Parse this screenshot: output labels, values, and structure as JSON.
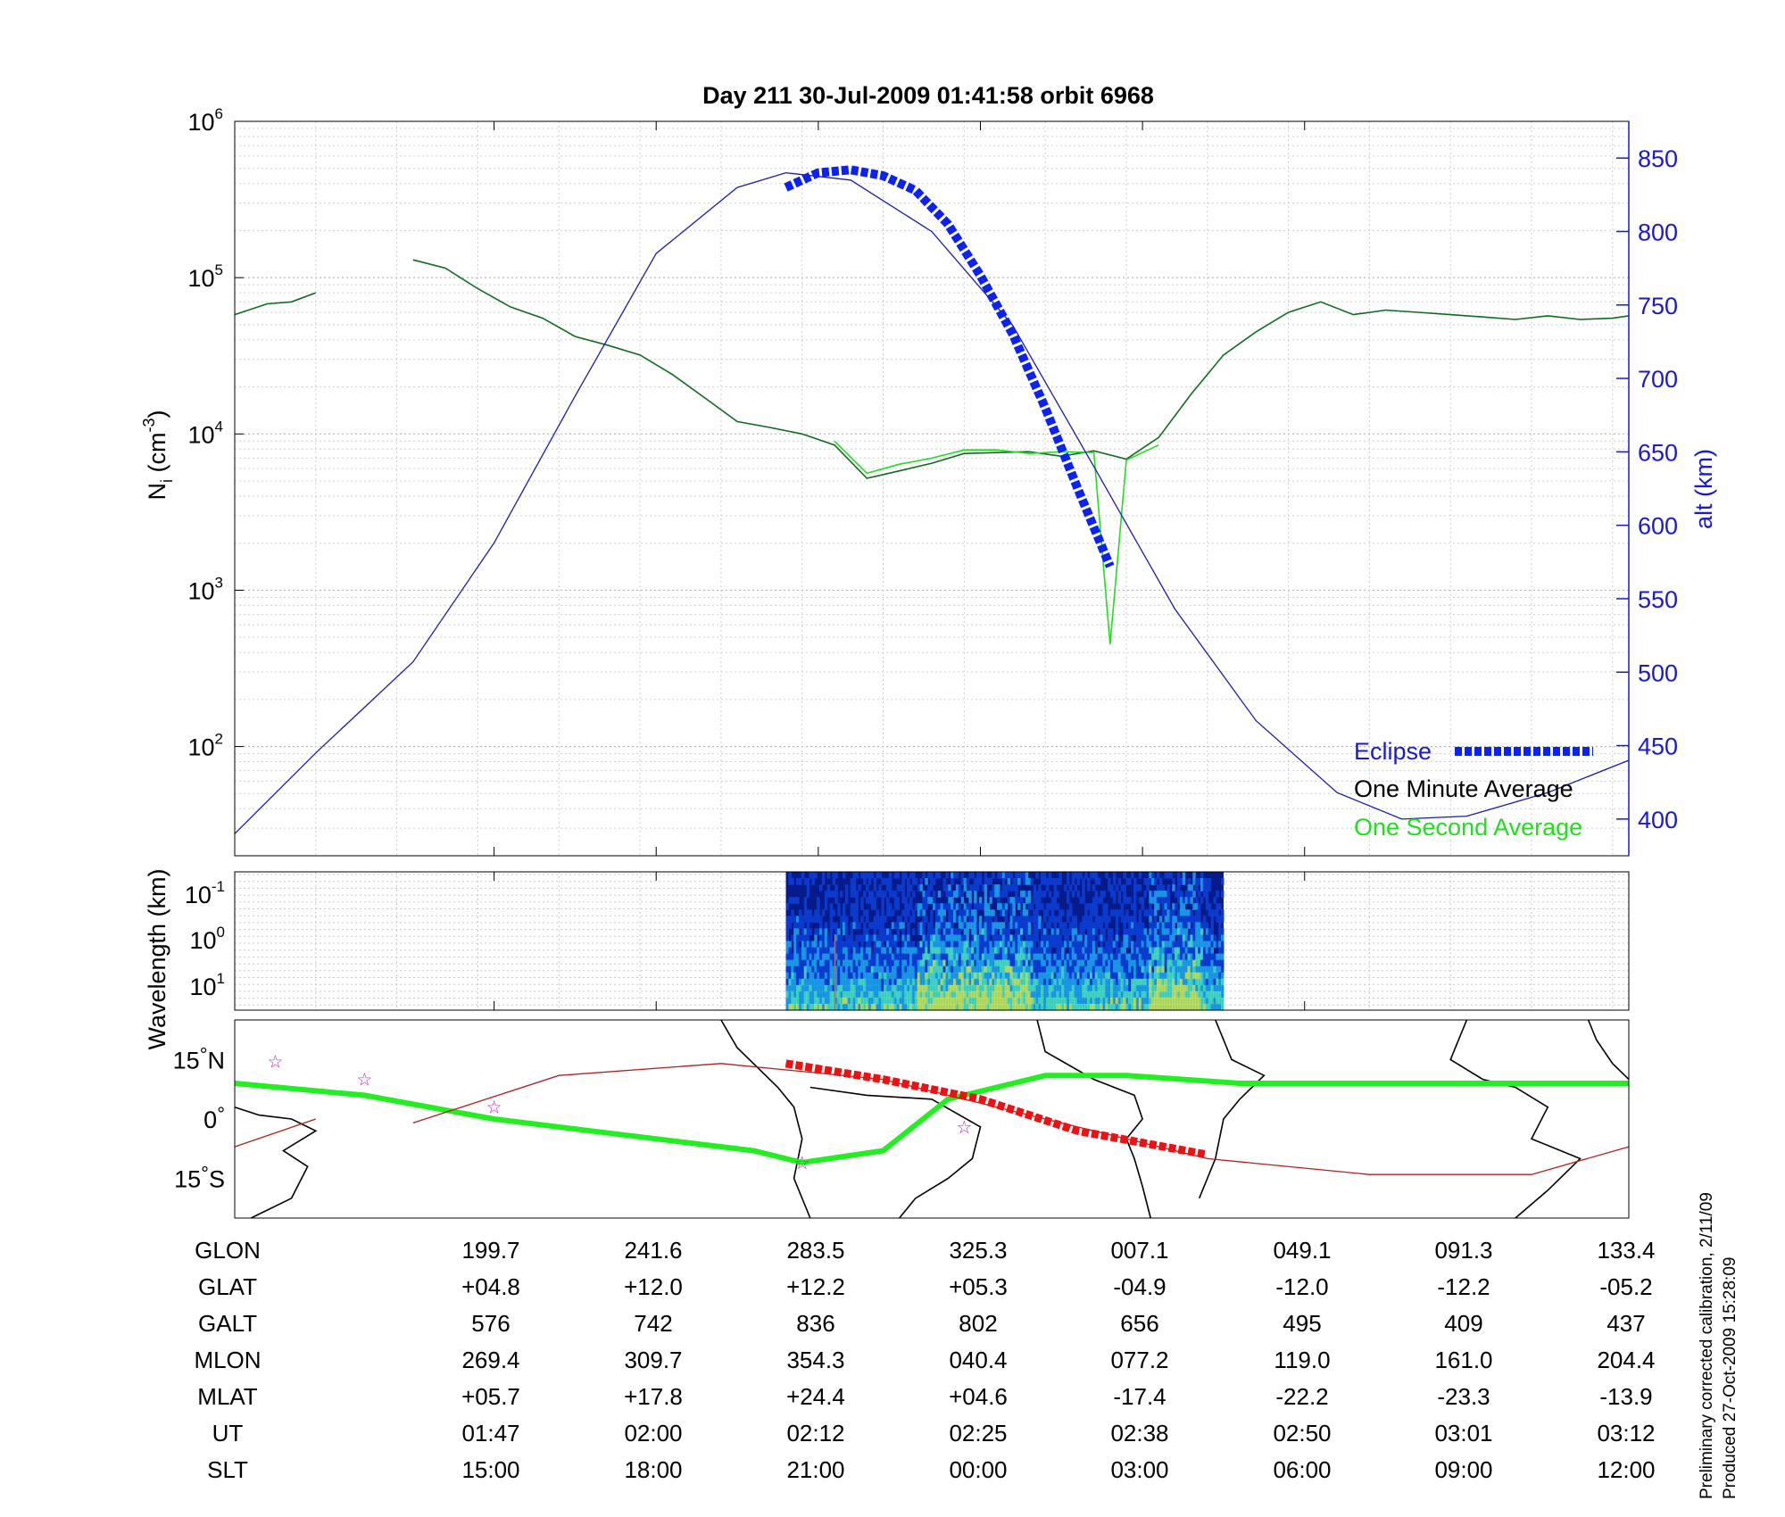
{
  "title": "Day 211  30-Jul-2009 01:41:58   orbit 6968",
  "colors": {
    "altitude": "#1c1ca8",
    "eclipse": "#0b22f0",
    "one_minute": "#0f6b1f",
    "one_second": "#22dd22",
    "track": "#22ee22",
    "magnetic_track": "#b02020",
    "eclipse_track": "#ee1111",
    "stars": "#bb22bb",
    "right_axis": "#1a1acc"
  },
  "chart_data": [
    {
      "type": "line",
      "ylabel": "N_i (cm^-3)",
      "ylabel_parts": {
        "base": "N",
        "sub": "i",
        "unit_open": " (cm",
        "unit_sup": "-3",
        "unit_close": ")"
      },
      "yscale": "log",
      "ylim": [
        20,
        1000000
      ],
      "yticks": [
        {
          "base": "10",
          "exp": "2",
          "value": 100
        },
        {
          "base": "10",
          "exp": "3",
          "value": 1000
        },
        {
          "base": "10",
          "exp": "4",
          "value": 10000
        },
        {
          "base": "10",
          "exp": "5",
          "value": 100000
        },
        {
          "base": "10",
          "exp": "6",
          "value": 1000000
        }
      ],
      "y2label": "alt (km)",
      "y2lim": [
        375,
        875
      ],
      "y2ticks": [
        "400",
        "450",
        "500",
        "550",
        "600",
        "650",
        "700",
        "750",
        "800",
        "850"
      ],
      "grid": true,
      "legend_position": "bottom-right",
      "legend": [
        "Eclipse",
        "One Minute Average",
        "One Second Average"
      ],
      "xlim": [
        0,
        8.6
      ],
      "series": [
        {
          "name": "One Minute Average",
          "axis": "left",
          "x": [
            0,
            0.2,
            0.35,
            0.5
          ],
          "y": [
            58000,
            68000,
            70000,
            80000
          ]
        },
        {
          "name": "One Minute Average",
          "axis": "left",
          "x": [
            1.1,
            1.3,
            1.5,
            1.7,
            1.9,
            2.1,
            2.3,
            2.5,
            2.7,
            2.9,
            3.1,
            3.3,
            3.5,
            3.7,
            3.9,
            4.1,
            4.3,
            4.5,
            4.7,
            4.9,
            5.1,
            5.3,
            5.5,
            5.7,
            5.9,
            6.1,
            6.3,
            6.5,
            6.7,
            6.9,
            7.1,
            7.3,
            7.5,
            7.7,
            7.9,
            8.1,
            8.3,
            8.5,
            8.6
          ],
          "y": [
            130000,
            115000,
            85000,
            65000,
            55000,
            42000,
            37000,
            32000,
            24000,
            17000,
            12000,
            11000,
            10000,
            8500,
            5200,
            5800,
            6500,
            7500,
            7600,
            7700,
            7200,
            7800,
            6900,
            9500,
            18000,
            32000,
            45000,
            60000,
            70000,
            58000,
            62000,
            60000,
            58000,
            56000,
            54000,
            57000,
            54000,
            55000,
            57000
          ]
        },
        {
          "name": "One Second Average",
          "axis": "left",
          "x": [
            3.7,
            3.9,
            4.1,
            4.3,
            4.5,
            4.7,
            4.9,
            5.1,
            5.3,
            5.4,
            5.5,
            5.7
          ],
          "y": [
            9000,
            5600,
            6400,
            7000,
            7900,
            7900,
            7500,
            7700,
            7600,
            450,
            6800,
            8500
          ]
        },
        {
          "name": "",
          "axis": "right",
          "x": [
            0,
            0.5,
            1.1,
            1.6,
            2.1,
            2.6,
            3.1,
            3.4,
            3.8,
            4.3,
            4.8,
            5.3,
            5.8,
            6.3,
            6.8,
            7.2,
            7.6,
            8.1,
            8.6
          ],
          "y": [
            390,
            445,
            507,
            588,
            688,
            785,
            830,
            840,
            835,
            800,
            736,
            640,
            543,
            467,
            418,
            400,
            402,
            418,
            440
          ]
        },
        {
          "name": "Eclipse",
          "axis": "right",
          "x": [
            3.4,
            3.6,
            3.8,
            4.0,
            4.2,
            4.4,
            4.6,
            4.8,
            5.0,
            5.2,
            5.4
          ],
          "y": [
            830,
            840,
            842,
            838,
            828,
            805,
            770,
            730,
            680,
            625,
            572
          ]
        }
      ]
    },
    {
      "type": "heatmap",
      "ylabel": "Wavelength (km)",
      "yticks": [
        {
          "base": "10",
          "exp": "-1"
        },
        {
          "base": "10",
          "exp": "0"
        },
        {
          "base": "10",
          "exp": "1"
        }
      ],
      "active_x_range": [
        3.4,
        6.1
      ],
      "palette": [
        "#071a8a",
        "#0c3fd6",
        "#1da7ee",
        "#49e9c4",
        "#c8f05a",
        "#f25b22"
      ]
    },
    {
      "type": "map",
      "yticks": [
        {
          "value": "15",
          "suffix": "N"
        },
        {
          "value": "0",
          "suffix": ""
        },
        {
          "value": "15",
          "suffix": "S"
        }
      ],
      "ylim": [
        -25,
        25
      ],
      "series": [
        {
          "name": "",
          "x": [
            0,
            0.8,
            1.6,
            2.4,
            3.2,
            3.5,
            4.0,
            4.4,
            5.0,
            5.5,
            6.2,
            6.8,
            7.5,
            8.1,
            8.6
          ],
          "y": [
            9,
            6,
            0,
            -4,
            -8,
            -11,
            -8,
            5,
            11,
            11,
            9,
            9,
            9,
            9,
            9
          ]
        },
        {
          "name": "",
          "x": [
            1.1,
            2.0,
            3.0,
            4.0,
            5.0,
            6.0,
            7.0,
            8.0,
            8.6
          ],
          "y": [
            -1,
            11,
            14,
            10,
            0,
            -10,
            -14,
            -14,
            -7
          ]
        },
        {
          "name": "",
          "x": [
            0,
            0.5
          ],
          "y": [
            -7,
            0
          ]
        },
        {
          "name": "",
          "x": [
            3.4,
            4.0,
            4.6,
            5.2,
            6.0
          ],
          "y": [
            14,
            10,
            5,
            -3,
            -9
          ]
        }
      ],
      "stars": [
        {
          "x": 0.25,
          "y": 14.5
        },
        {
          "x": 0.8,
          "y": 10
        },
        {
          "x": 1.6,
          "y": 3
        },
        {
          "x": 3.5,
          "y": -11
        },
        {
          "x": 4.5,
          "y": -2
        }
      ]
    }
  ],
  "table": {
    "rows": [
      {
        "label": "GLON",
        "values": [
          "199.7",
          "241.6",
          "283.5",
          "325.3",
          "007.1",
          "049.1",
          "091.3",
          "133.4"
        ]
      },
      {
        "label": "GLAT",
        "values": [
          "+04.8",
          "+12.0",
          "+12.2",
          "+05.3",
          "-04.9",
          "-12.0",
          "-12.2",
          "-05.2"
        ]
      },
      {
        "label": "GALT",
        "values": [
          "576",
          "742",
          "836",
          "802",
          "656",
          "495",
          "409",
          "437"
        ]
      },
      {
        "label": "MLON",
        "values": [
          "269.4",
          "309.7",
          "354.3",
          "040.4",
          "077.2",
          "119.0",
          "161.0",
          "204.4"
        ]
      },
      {
        "label": "MLAT",
        "values": [
          "+05.7",
          "+17.8",
          "+24.4",
          "+04.6",
          "-17.4",
          "-22.2",
          "-23.3",
          "-13.9"
        ]
      },
      {
        "label": "UT",
        "values": [
          "01:47",
          "02:00",
          "02:12",
          "02:25",
          "02:38",
          "02:50",
          "03:01",
          "03:12"
        ]
      },
      {
        "label": "SLT",
        "values": [
          "15:00",
          "18:00",
          "21:00",
          "00:00",
          "03:00",
          "06:00",
          "09:00",
          "12:00"
        ]
      }
    ]
  },
  "footer": {
    "line1": "Preliminary corrected calibration, 2/11/09",
    "line2": "Produced 27-Oct-2009 15:28:09"
  }
}
